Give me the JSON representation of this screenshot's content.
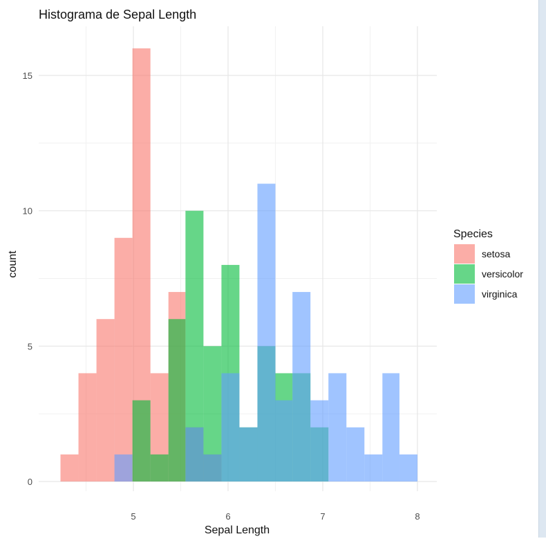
{
  "chart_data": {
    "type": "histogram",
    "title": "Histograma de Sepal Length",
    "xlabel": "Sepal Length",
    "ylabel": "count",
    "xlim": [
      4.1,
      8.2
    ],
    "ylim": [
      0,
      16.5
    ],
    "x_ticks": [
      5,
      6,
      7,
      8
    ],
    "y_ticks": [
      0,
      5,
      10,
      15
    ],
    "grid": true,
    "stacked": false,
    "bin_edges": [
      4.23,
      4.42,
      4.61,
      4.8,
      4.99,
      5.18,
      5.37,
      5.55,
      5.74,
      5.93,
      6.12,
      6.31,
      6.5,
      6.68,
      6.87,
      7.06,
      7.25,
      7.44,
      7.63,
      7.81,
      8.0
    ],
    "legend": {
      "title": "Species",
      "position": "right"
    },
    "series": [
      {
        "name": "setosa",
        "color": "#F8766D",
        "counts": [
          1,
          4,
          6,
          9,
          16,
          4,
          7,
          2,
          1,
          0,
          0,
          0,
          0,
          0,
          0,
          0,
          0,
          0,
          0,
          0
        ]
      },
      {
        "name": "versicolor",
        "color": "#00BA38",
        "counts": [
          0,
          0,
          0,
          0,
          3,
          1,
          6,
          10,
          5,
          8,
          2,
          5,
          4,
          4,
          2,
          0,
          0,
          0,
          0,
          0
        ]
      },
      {
        "name": "virginica",
        "color": "#619CFF",
        "counts": [
          0,
          0,
          0,
          1,
          0,
          0,
          0,
          2,
          1,
          4,
          2,
          11,
          3,
          7,
          3,
          4,
          2,
          1,
          4,
          1
        ]
      }
    ]
  }
}
